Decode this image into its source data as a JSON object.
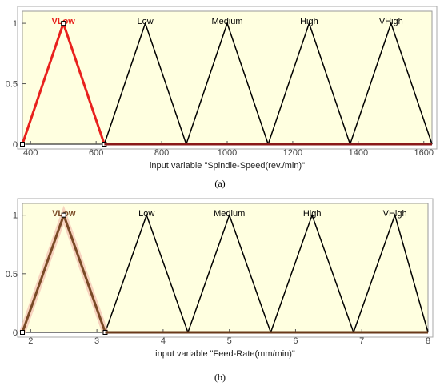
{
  "chart_data": [
    {
      "type": "line",
      "panel_label": "(a)",
      "xlabel": "input variable \"Spindle-Speed(rev./min)\"",
      "ylabel": "",
      "xlim": [
        375,
        1625
      ],
      "ylim": [
        0,
        1.1
      ],
      "xticks": [
        400,
        600,
        800,
        1000,
        1200,
        1400,
        1600
      ],
      "yticks": [
        0,
        0.5,
        1
      ],
      "ytick_labels": [
        "0",
        "0.5",
        "1"
      ],
      "grid": false,
      "highlighted_series": "VLow",
      "colors": {
        "background": "#ffffe0",
        "normal": "#000000",
        "highlight": "#e8211d"
      },
      "series": [
        {
          "name": "VLow",
          "x": [
            375,
            500,
            625
          ],
          "y": [
            0,
            1,
            0
          ]
        },
        {
          "name": "Low",
          "x": [
            625,
            750,
            875
          ],
          "y": [
            0,
            1,
            0
          ]
        },
        {
          "name": "Medium",
          "x": [
            875,
            1000,
            1125
          ],
          "y": [
            0,
            1,
            0
          ]
        },
        {
          "name": "High",
          "x": [
            1125,
            1250,
            1375
          ],
          "y": [
            0,
            1,
            0
          ]
        },
        {
          "name": "VHigh",
          "x": [
            1375,
            1500,
            1625
          ],
          "y": [
            0,
            1,
            0
          ]
        }
      ]
    },
    {
      "type": "line",
      "panel_label": "(b)",
      "xlabel": "input variable \"Feed-Rate(mm/min)\"",
      "ylabel": "",
      "xlim": [
        1.875,
        8
      ],
      "ylim": [
        0,
        1.1
      ],
      "xticks": [
        2,
        3,
        4,
        5,
        6,
        7,
        8
      ],
      "yticks": [
        0,
        0.5,
        1
      ],
      "ytick_labels": [
        "0",
        "0.5",
        "1"
      ],
      "grid": false,
      "highlighted_series": "VLow",
      "colors": {
        "background": "#ffffe0",
        "normal": "#000000",
        "highlight": "#7a4a26"
      },
      "series": [
        {
          "name": "VLow",
          "x": [
            1.875,
            2.5,
            3.125
          ],
          "y": [
            0,
            1,
            0
          ]
        },
        {
          "name": "Low",
          "x": [
            3.125,
            3.75,
            4.375
          ],
          "y": [
            0,
            1,
            0
          ]
        },
        {
          "name": "Medium",
          "x": [
            4.375,
            5.0,
            5.625
          ],
          "y": [
            0,
            1,
            0
          ]
        },
        {
          "name": "High",
          "x": [
            5.625,
            6.25,
            6.875
          ],
          "y": [
            0,
            1,
            0
          ]
        },
        {
          "name": "VHigh",
          "x": [
            6.875,
            7.5,
            8.0
          ],
          "y": [
            0,
            1,
            0
          ]
        }
      ]
    }
  ]
}
